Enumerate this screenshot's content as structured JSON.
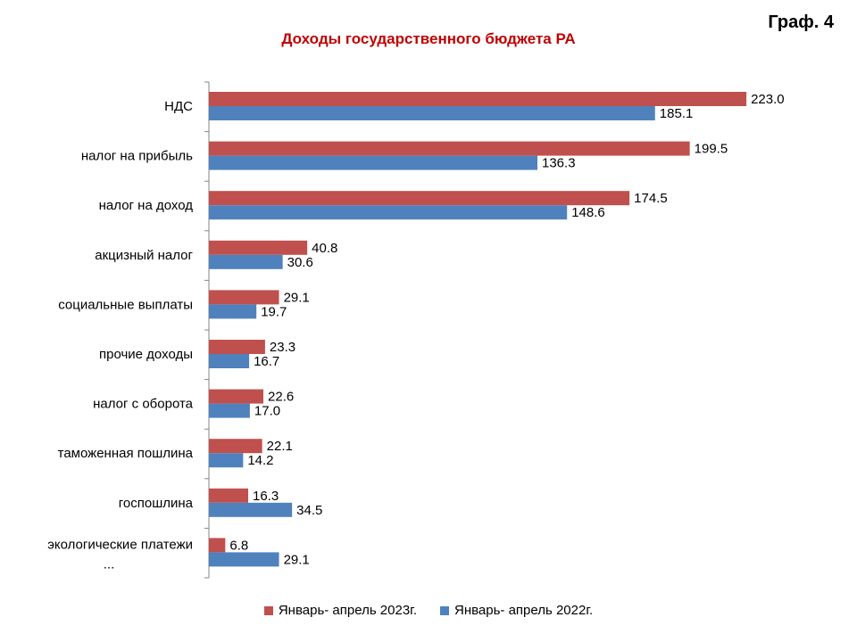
{
  "header": {
    "graf_label": "Граф. 4"
  },
  "chart_data": {
    "type": "bar",
    "orientation": "horizontal",
    "title": "Доходы государственного бюджета РА",
    "categories": [
      "НДС",
      "налог на прибыль",
      "налог  на доход",
      "акцизный налог",
      "социальные выплаты",
      "прочие  доходы",
      "налог с оборота",
      "таможенная пошлина",
      "госпошлина",
      "экологические платежи ..."
    ],
    "series": [
      {
        "name": "Январь- апрель 2023г.",
        "color": "#c0504d",
        "values": [
          223.0,
          199.5,
          174.5,
          40.8,
          29.1,
          23.3,
          22.6,
          22.1,
          16.3,
          6.8
        ]
      },
      {
        "name": "Январь- апрель 2022г.",
        "color": "#4f81bd",
        "values": [
          185.1,
          136.3,
          148.6,
          30.6,
          19.7,
          16.7,
          17.0,
          14.2,
          34.5,
          29.1
        ]
      }
    ],
    "xlim": [
      0,
      250
    ],
    "grid": false,
    "legend_position": "bottom",
    "value_format": "one_decimal"
  }
}
